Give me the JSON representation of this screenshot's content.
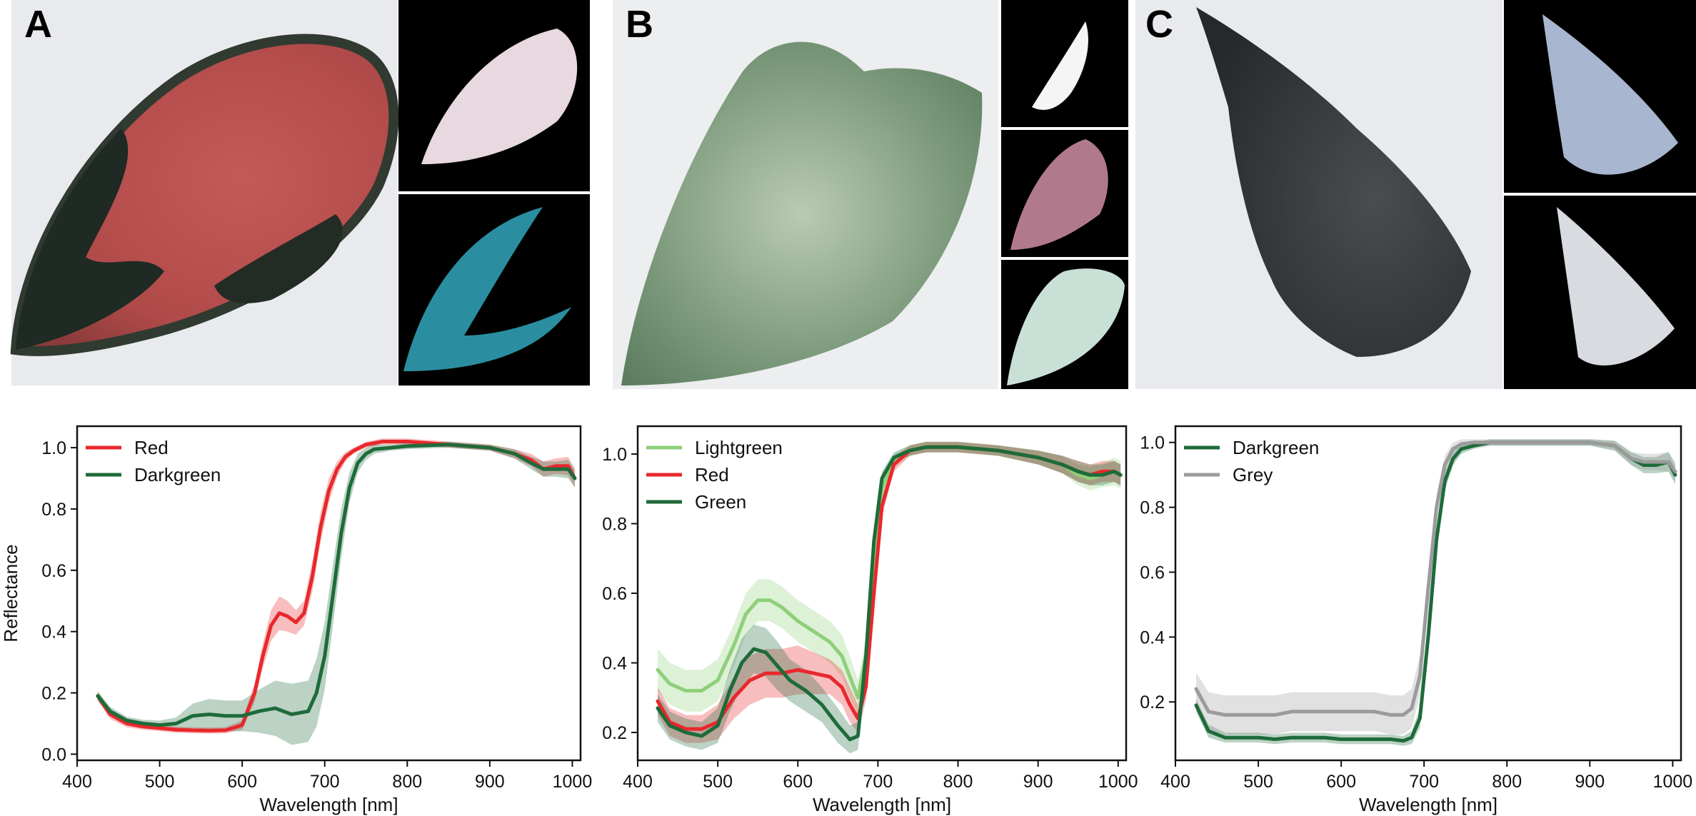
{
  "panels": [
    {
      "letter": "A"
    },
    {
      "letter": "B"
    },
    {
      "letter": "C"
    }
  ],
  "chart_data": [
    {
      "type": "line",
      "panel": "A",
      "xlabel": "Wavelength [nm]",
      "ylabel": "Reflectance",
      "xlim": [
        400,
        1010
      ],
      "ylim": [
        -0.02,
        1.07
      ],
      "xticks": [
        400,
        500,
        600,
        700,
        800,
        900,
        1000
      ],
      "yticks": [
        0.0,
        0.2,
        0.4,
        0.6,
        0.8,
        1.0
      ],
      "ytick_labels": [
        "0.0",
        "0.2",
        "0.4",
        "0.6",
        "0.8",
        "1.0"
      ],
      "legend_position": "top-left",
      "grid": false,
      "series": [
        {
          "name": "Red",
          "color": "#e8282c",
          "x": [
            425,
            440,
            460,
            480,
            500,
            520,
            540,
            560,
            580,
            600,
            615,
            625,
            635,
            645,
            655,
            665,
            675,
            685,
            695,
            705,
            715,
            725,
            735,
            750,
            770,
            800,
            850,
            900,
            930,
            950,
            965,
            980,
            995,
            1003
          ],
          "y": [
            0.19,
            0.13,
            0.1,
            0.09,
            0.085,
            0.08,
            0.078,
            0.077,
            0.078,
            0.095,
            0.2,
            0.32,
            0.42,
            0.46,
            0.45,
            0.43,
            0.46,
            0.58,
            0.74,
            0.86,
            0.93,
            0.97,
            0.99,
            1.01,
            1.02,
            1.02,
            1.01,
            1.0,
            0.98,
            0.96,
            0.93,
            0.94,
            0.94,
            0.9
          ],
          "band": [
            0.015,
            0.015,
            0.012,
            0.01,
            0.01,
            0.01,
            0.01,
            0.01,
            0.01,
            0.015,
            0.03,
            0.04,
            0.05,
            0.055,
            0.05,
            0.04,
            0.04,
            0.05,
            0.05,
            0.04,
            0.025,
            0.015,
            0.01,
            0.01,
            0.01,
            0.01,
            0.01,
            0.01,
            0.015,
            0.02,
            0.025,
            0.025,
            0.03,
            0.03
          ]
        },
        {
          "name": "Darkgreen",
          "color": "#1e6b3a",
          "x": [
            425,
            440,
            460,
            480,
            500,
            520,
            540,
            560,
            580,
            600,
            620,
            640,
            660,
            680,
            690,
            700,
            710,
            720,
            730,
            740,
            750,
            760,
            780,
            800,
            850,
            900,
            930,
            950,
            965,
            980,
            995,
            1003
          ],
          "y": [
            0.19,
            0.14,
            0.11,
            0.1,
            0.095,
            0.1,
            0.125,
            0.13,
            0.125,
            0.125,
            0.14,
            0.15,
            0.13,
            0.14,
            0.2,
            0.32,
            0.52,
            0.72,
            0.87,
            0.95,
            0.98,
            0.995,
            1.0,
            1.005,
            1.01,
            1.0,
            0.98,
            0.95,
            0.93,
            0.93,
            0.93,
            0.9
          ],
          "band": [
            0.015,
            0.015,
            0.012,
            0.012,
            0.015,
            0.02,
            0.04,
            0.05,
            0.05,
            0.05,
            0.07,
            0.09,
            0.1,
            0.1,
            0.11,
            0.11,
            0.1,
            0.08,
            0.05,
            0.03,
            0.02,
            0.015,
            0.01,
            0.01,
            0.01,
            0.01,
            0.015,
            0.02,
            0.025,
            0.025,
            0.03,
            0.03
          ]
        }
      ]
    },
    {
      "type": "line",
      "panel": "B",
      "xlabel": "Wavelength [nm]",
      "ylabel": "",
      "xlim": [
        400,
        1010
      ],
      "ylim": [
        0.12,
        1.08
      ],
      "xticks": [
        400,
        500,
        600,
        700,
        800,
        900,
        1000
      ],
      "yticks": [
        0.2,
        0.4,
        0.6,
        0.8,
        1.0
      ],
      "ytick_labels": [
        "0.2",
        "0.4",
        "0.6",
        "0.8",
        "1.0"
      ],
      "legend_position": "top-left",
      "grid": false,
      "series": [
        {
          "name": "Lightgreen",
          "color": "#8fcf7a",
          "x": [
            425,
            440,
            460,
            480,
            500,
            520,
            535,
            550,
            565,
            580,
            600,
            620,
            640,
            655,
            665,
            675,
            685,
            695,
            705,
            720,
            740,
            760,
            800,
            850,
            900,
            930,
            950,
            965,
            980,
            995,
            1003
          ],
          "y": [
            0.38,
            0.34,
            0.32,
            0.32,
            0.35,
            0.45,
            0.54,
            0.58,
            0.58,
            0.56,
            0.52,
            0.49,
            0.46,
            0.42,
            0.36,
            0.3,
            0.42,
            0.7,
            0.9,
            0.98,
            1.01,
            1.02,
            1.02,
            1.01,
            0.99,
            0.97,
            0.94,
            0.93,
            0.94,
            0.95,
            0.94
          ],
          "band": [
            0.06,
            0.06,
            0.06,
            0.06,
            0.06,
            0.06,
            0.06,
            0.06,
            0.06,
            0.06,
            0.06,
            0.06,
            0.06,
            0.06,
            0.06,
            0.05,
            0.05,
            0.04,
            0.03,
            0.02,
            0.015,
            0.015,
            0.015,
            0.015,
            0.02,
            0.025,
            0.03,
            0.035,
            0.035,
            0.04,
            0.04
          ]
        },
        {
          "name": "Red",
          "color": "#e8282c",
          "x": [
            425,
            440,
            460,
            480,
            500,
            520,
            540,
            560,
            580,
            600,
            620,
            640,
            655,
            665,
            675,
            685,
            695,
            705,
            720,
            740,
            760,
            800,
            850,
            900,
            930,
            950,
            965,
            980,
            995,
            1003
          ],
          "y": [
            0.29,
            0.23,
            0.21,
            0.21,
            0.23,
            0.3,
            0.35,
            0.37,
            0.37,
            0.38,
            0.37,
            0.36,
            0.33,
            0.28,
            0.24,
            0.33,
            0.6,
            0.85,
            0.97,
            1.01,
            1.02,
            1.02,
            1.01,
            0.99,
            0.97,
            0.95,
            0.94,
            0.95,
            0.95,
            0.94
          ],
          "band": [
            0.04,
            0.04,
            0.04,
            0.04,
            0.05,
            0.06,
            0.07,
            0.07,
            0.07,
            0.07,
            0.06,
            0.05,
            0.05,
            0.05,
            0.04,
            0.04,
            0.04,
            0.03,
            0.02,
            0.015,
            0.015,
            0.015,
            0.015,
            0.02,
            0.025,
            0.03,
            0.03,
            0.03,
            0.03,
            0.03
          ]
        },
        {
          "name": "Green",
          "color": "#1e6b3a",
          "x": [
            425,
            440,
            460,
            480,
            500,
            515,
            530,
            545,
            560,
            575,
            590,
            610,
            630,
            650,
            665,
            675,
            685,
            695,
            705,
            720,
            740,
            760,
            800,
            850,
            900,
            930,
            950,
            965,
            980,
            995,
            1003
          ],
          "y": [
            0.27,
            0.22,
            0.2,
            0.19,
            0.22,
            0.32,
            0.4,
            0.44,
            0.43,
            0.39,
            0.35,
            0.32,
            0.28,
            0.22,
            0.18,
            0.19,
            0.42,
            0.75,
            0.93,
            0.99,
            1.01,
            1.02,
            1.02,
            1.01,
            0.99,
            0.97,
            0.95,
            0.94,
            0.94,
            0.95,
            0.94
          ],
          "band": [
            0.04,
            0.04,
            0.04,
            0.04,
            0.05,
            0.06,
            0.07,
            0.07,
            0.07,
            0.07,
            0.06,
            0.06,
            0.05,
            0.05,
            0.04,
            0.04,
            0.04,
            0.03,
            0.02,
            0.015,
            0.015,
            0.015,
            0.015,
            0.015,
            0.02,
            0.025,
            0.03,
            0.03,
            0.03,
            0.03,
            0.03
          ]
        }
      ]
    },
    {
      "type": "line",
      "panel": "C",
      "xlabel": "Wavelength [nm]",
      "ylabel": "",
      "xlim": [
        400,
        1010
      ],
      "ylim": [
        0.02,
        1.05
      ],
      "xticks": [
        400,
        500,
        600,
        700,
        800,
        900,
        1000
      ],
      "yticks": [
        0.2,
        0.4,
        0.6,
        0.8,
        1.0
      ],
      "ytick_labels": [
        "0.2",
        "0.4",
        "0.6",
        "0.8",
        "1.0"
      ],
      "legend_position": "top-left",
      "grid": false,
      "series": [
        {
          "name": "Darkgreen",
          "color": "#1e6b3a",
          "x": [
            425,
            440,
            460,
            480,
            500,
            520,
            540,
            560,
            580,
            600,
            620,
            640,
            660,
            675,
            685,
            695,
            705,
            715,
            725,
            735,
            745,
            760,
            780,
            800,
            850,
            900,
            930,
            950,
            965,
            980,
            995,
            1003
          ],
          "y": [
            0.19,
            0.11,
            0.09,
            0.09,
            0.09,
            0.085,
            0.09,
            0.09,
            0.09,
            0.085,
            0.085,
            0.085,
            0.085,
            0.08,
            0.09,
            0.15,
            0.4,
            0.7,
            0.88,
            0.95,
            0.98,
            0.99,
            1.0,
            1.0,
            1.0,
            1.0,
            0.99,
            0.95,
            0.93,
            0.93,
            0.94,
            0.9
          ],
          "band": [
            0.02,
            0.02,
            0.015,
            0.015,
            0.015,
            0.015,
            0.015,
            0.015,
            0.015,
            0.015,
            0.015,
            0.015,
            0.015,
            0.015,
            0.02,
            0.03,
            0.04,
            0.04,
            0.03,
            0.02,
            0.015,
            0.01,
            0.01,
            0.01,
            0.01,
            0.01,
            0.015,
            0.02,
            0.025,
            0.025,
            0.03,
            0.03
          ]
        },
        {
          "name": "Grey",
          "color": "#9b9b9b",
          "x": [
            425,
            440,
            460,
            480,
            500,
            520,
            540,
            560,
            580,
            600,
            620,
            640,
            660,
            675,
            685,
            695,
            705,
            715,
            725,
            735,
            745,
            760,
            780,
            800,
            850,
            900,
            930,
            950,
            965,
            980,
            995,
            1003
          ],
          "y": [
            0.24,
            0.17,
            0.16,
            0.16,
            0.16,
            0.16,
            0.17,
            0.17,
            0.17,
            0.17,
            0.17,
            0.17,
            0.16,
            0.16,
            0.18,
            0.28,
            0.55,
            0.8,
            0.93,
            0.98,
            0.995,
            1.0,
            1.0,
            1.0,
            1.0,
            1.0,
            0.99,
            0.95,
            0.94,
            0.94,
            0.94,
            0.91
          ],
          "band": [
            0.05,
            0.06,
            0.06,
            0.06,
            0.06,
            0.06,
            0.06,
            0.06,
            0.06,
            0.06,
            0.06,
            0.06,
            0.06,
            0.06,
            0.06,
            0.06,
            0.05,
            0.04,
            0.03,
            0.02,
            0.015,
            0.01,
            0.01,
            0.01,
            0.01,
            0.01,
            0.015,
            0.02,
            0.025,
            0.025,
            0.03,
            0.03
          ]
        }
      ]
    }
  ]
}
